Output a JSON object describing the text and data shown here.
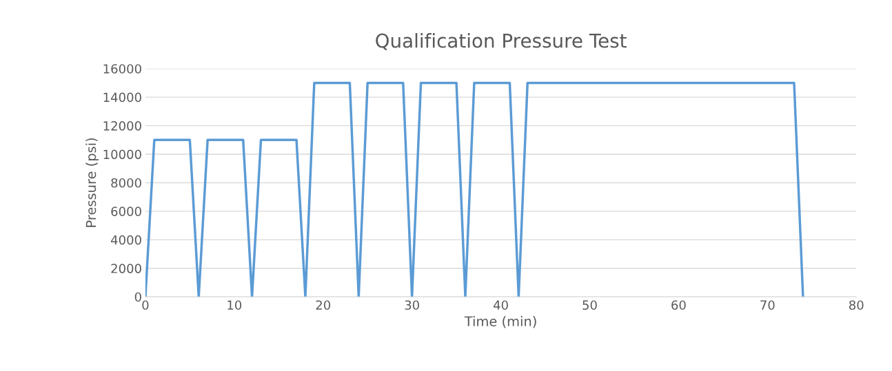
{
  "chart_data": {
    "type": "line",
    "title": "Qualification Pressure Test",
    "xlabel": "Time (min)",
    "ylabel": "Pressure (psi)",
    "series": [
      {
        "color": "#5b9bd5",
        "x": [
          0,
          1,
          5,
          6,
          7,
          11,
          12,
          13,
          17,
          18,
          19,
          23,
          24,
          25,
          29,
          30,
          31,
          35,
          36,
          37,
          41,
          42,
          43,
          73,
          74
        ],
        "values": [
          0,
          11000,
          11000,
          0,
          11000,
          11000,
          0,
          11000,
          11000,
          0,
          15000,
          15000,
          0,
          15000,
          15000,
          0,
          15000,
          15000,
          0,
          15000,
          15000,
          0,
          15000,
          15000,
          0
        ]
      }
    ],
    "xlim": [
      0,
      80
    ],
    "xticks": [
      0,
      10,
      20,
      30,
      40,
      50,
      60,
      70,
      80
    ],
    "ylim": [
      0,
      16000
    ],
    "yticks": [
      0,
      2000,
      4000,
      6000,
      8000,
      10000,
      12000,
      14000,
      16000
    ],
    "grid": "y",
    "marker": "none",
    "line_style": "solid"
  }
}
